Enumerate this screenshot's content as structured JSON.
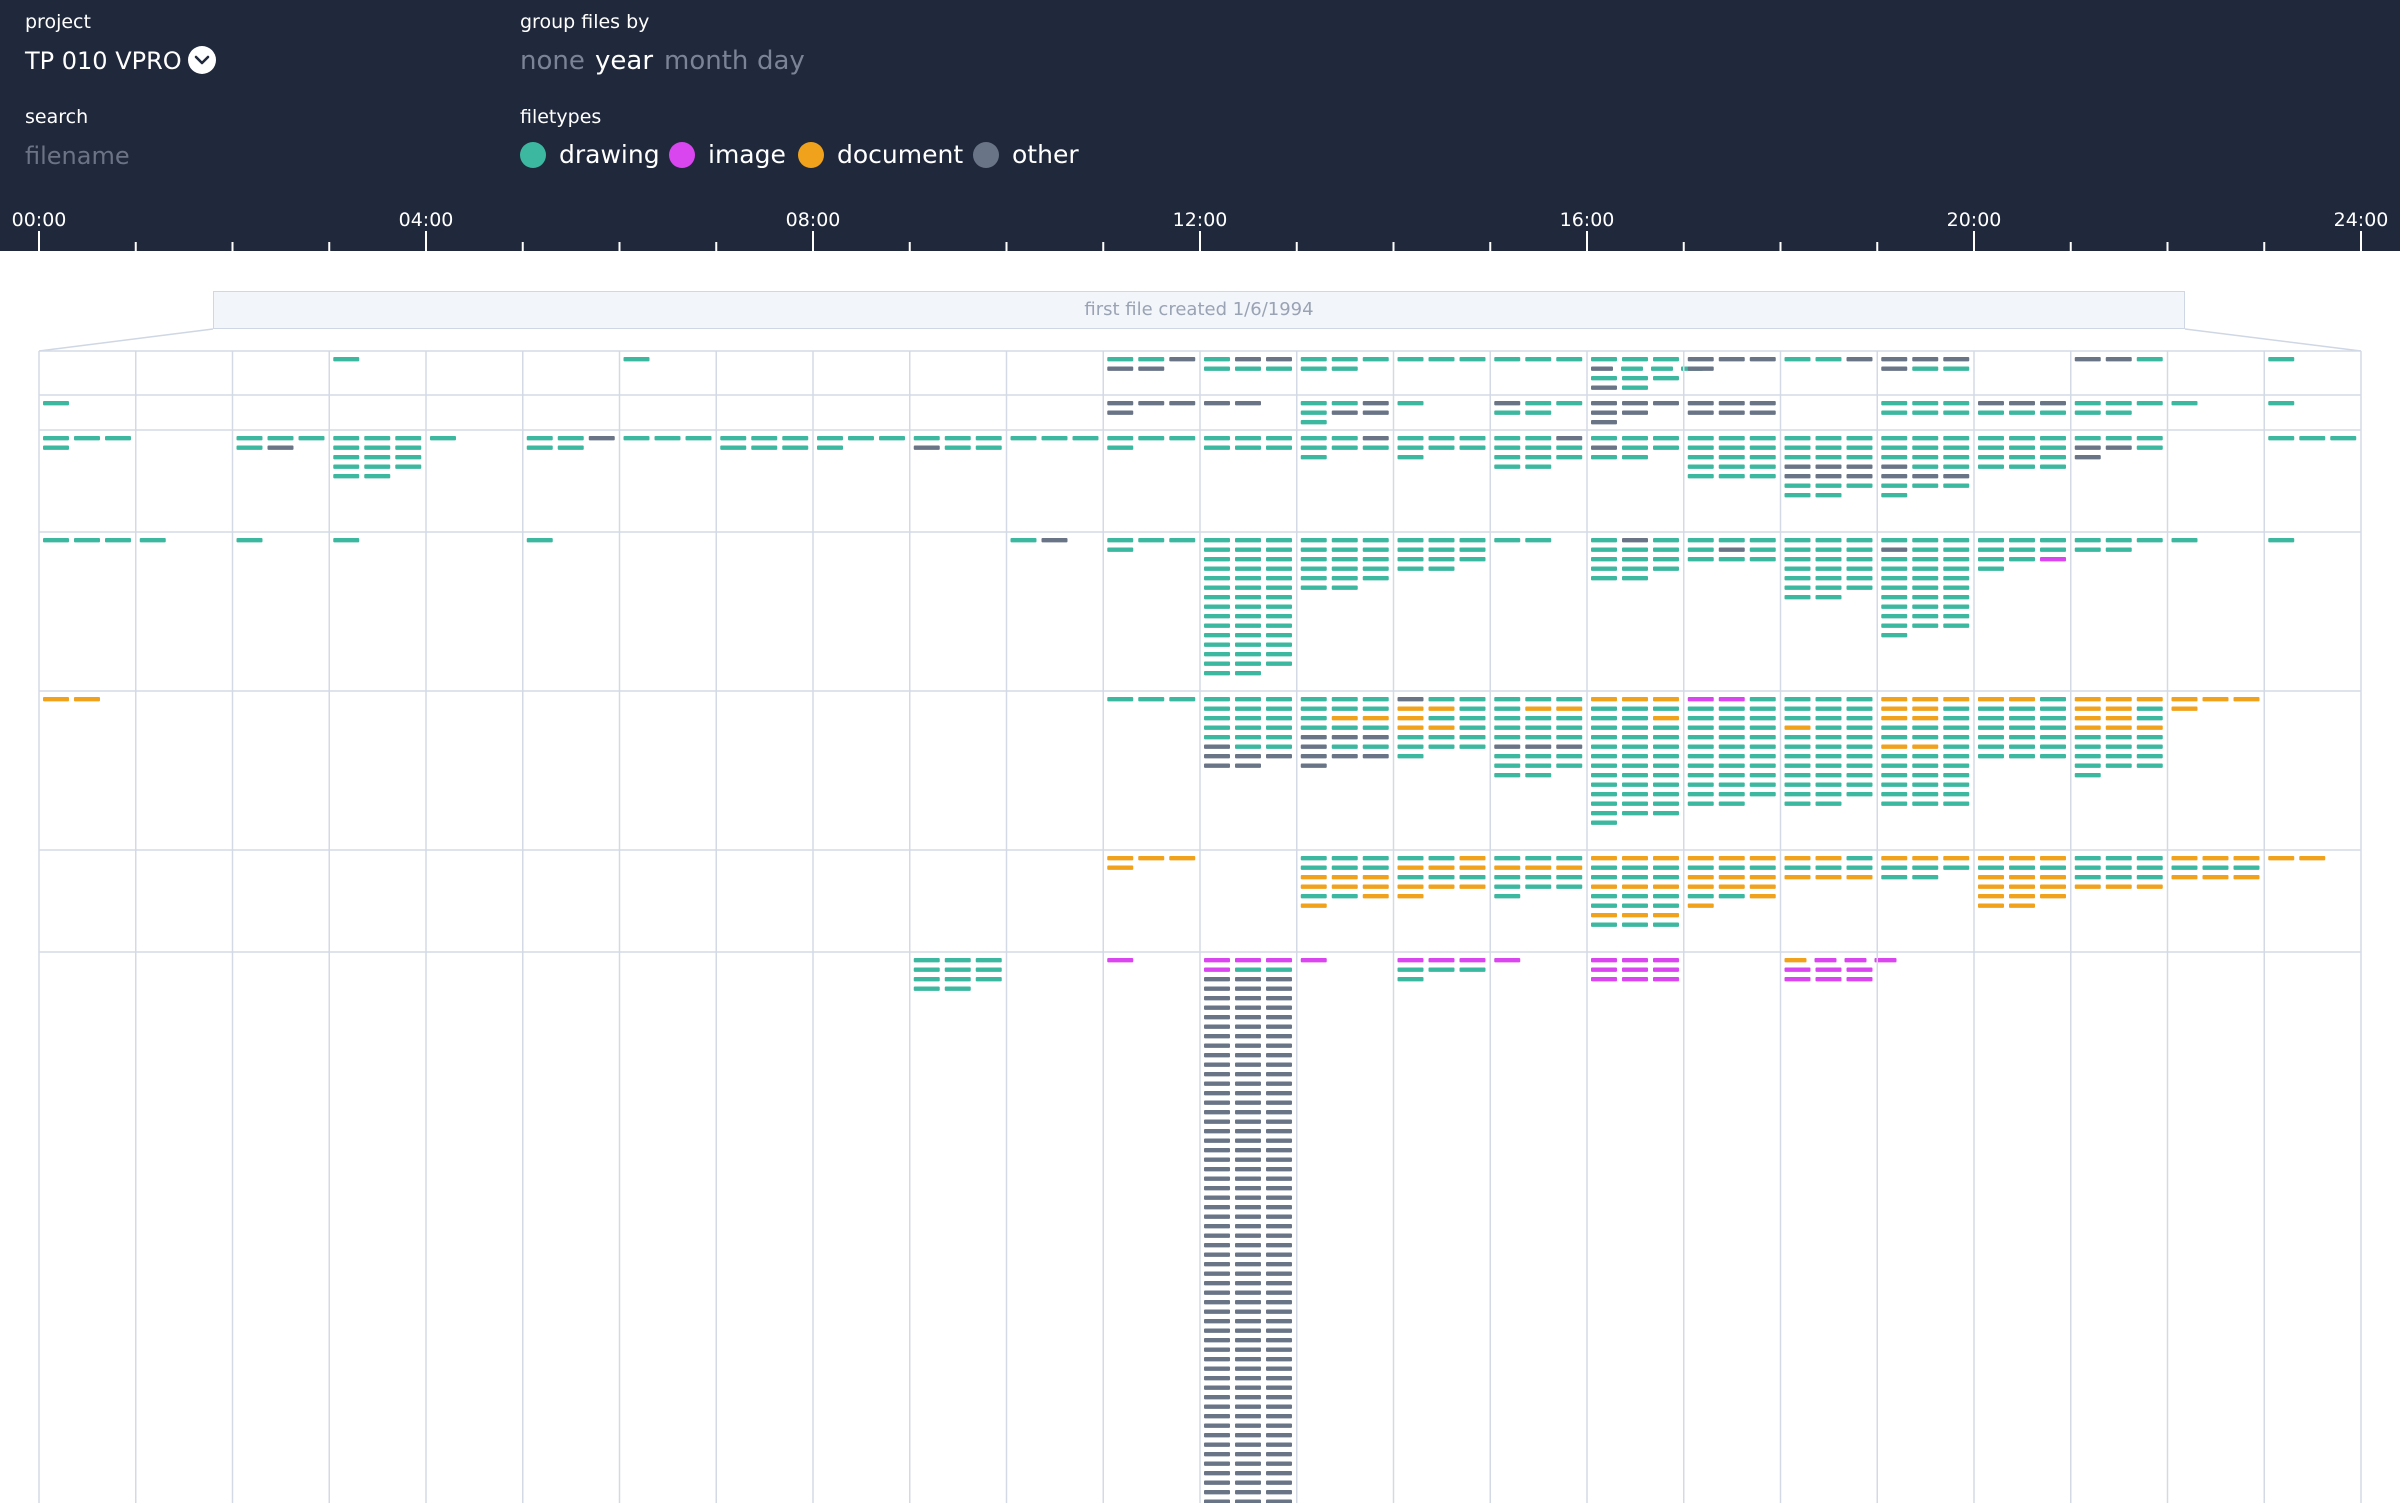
{
  "header": {
    "project_label": "project",
    "project_value": "TP 010 VPRO",
    "group_label": "group files by",
    "group_options": [
      "none",
      "year",
      "month",
      "day"
    ],
    "group_selected": "year",
    "search_label": "search",
    "search_placeholder": "filename",
    "filetypes_label": "filetypes",
    "filetypes": [
      {
        "name": "drawing",
        "color": "#3db8a0"
      },
      {
        "name": "image",
        "color": "#d946ef"
      },
      {
        "name": "document",
        "color": "#f0a21c"
      },
      {
        "name": "other",
        "color": "#6a7487"
      }
    ]
  },
  "timeline": {
    "tick_labels": [
      "00:00",
      "04:00",
      "08:00",
      "12:00",
      "16:00",
      "20:00",
      "24:00"
    ],
    "hours": 24,
    "banner": "first file created 1/6/1994"
  },
  "rows": [
    {
      "cells": [
        [],
        [],
        [],
        [
          "d"
        ],
        [],
        [],
        [
          "d"
        ],
        [],
        [],
        [],
        [],
        [
          "ddo",
          "oo"
        ],
        [
          "doo",
          "ddd"
        ],
        [
          "ddd",
          "dd"
        ],
        [
          "ddd"
        ],
        [
          "ddd"
        ],
        [
          "ddd",
          "oddd",
          "ddd",
          "od"
        ],
        [
          "ooo",
          "o"
        ],
        [
          "ddo"
        ],
        [
          "ooo",
          "odd"
        ],
        [],
        [
          "ood"
        ],
        [],
        [
          "d"
        ],
        []
      ]
    },
    {
      "cells": [
        [
          "d"
        ],
        [],
        [],
        [],
        [],
        [],
        [],
        [],
        [],
        [],
        [],
        [
          "ooo",
          "o"
        ],
        [
          "oo"
        ],
        [
          "ddo",
          "doo",
          "d"
        ],
        [
          "d"
        ],
        [
          "odd",
          "dd"
        ],
        [
          "ooo",
          "oo",
          "o"
        ],
        [
          "ooo",
          "ooo"
        ],
        [],
        [
          "ddd",
          "ddd"
        ],
        [
          "ooo",
          "ddd"
        ],
        [
          "ddd",
          "dd"
        ],
        [
          "d"
        ],
        [
          "d"
        ],
        []
      ]
    },
    {
      "cells": [
        [
          "ddd",
          "d"
        ],
        [],
        [
          "ddd",
          "do"
        ],
        [
          "ddd",
          "ddd",
          "ddd",
          "ddd",
          "dd"
        ],
        [
          "d"
        ],
        [
          "ddo",
          "dd"
        ],
        [
          "ddd"
        ],
        [
          "ddd",
          "ddd"
        ],
        [
          "ddd",
          "d"
        ],
        [
          "ddd",
          "odd"
        ],
        [
          "ddd"
        ],
        [
          "ddd",
          "d"
        ],
        [
          "ddd",
          "ddd"
        ],
        [
          "ddo",
          "ddd",
          "d"
        ],
        [
          "ddd",
          "ddd",
          "d"
        ],
        [
          "ddo",
          "ddd",
          "ddd",
          "dd"
        ],
        [
          "ddd",
          "odd",
          "dd"
        ],
        [
          "ddd",
          "ddd",
          "ddd",
          "ddd",
          "ddd"
        ],
        [
          "ddd",
          "ddd",
          "ddd",
          "ooo",
          "ooo",
          "ddd",
          "dd"
        ],
        [
          "ddd",
          "ddd",
          "ddd",
          "odd",
          "ooo",
          "ddd",
          "d"
        ],
        [
          "ddd",
          "ddd",
          "ddd",
          "ddd"
        ],
        [
          "ddd",
          "ood",
          "o"
        ],
        [],
        [
          "ddd"
        ],
        []
      ]
    },
    {
      "cells": [
        [
          "ddd"
        ],
        [
          "d"
        ],
        [
          "d"
        ],
        [
          "d"
        ],
        [],
        [
          "d"
        ],
        [],
        [],
        [],
        [],
        [
          "do"
        ],
        [
          "ddd",
          "d"
        ],
        [
          "ddd",
          "ddd",
          "ddd",
          "ddd",
          "ddd",
          "ddd",
          "ddd",
          "ddd",
          "ddd",
          "ddd",
          "ddd",
          "ddd",
          "ddd",
          "ddd",
          "dd"
        ],
        [
          "ddd",
          "ddd",
          "ddd",
          "ddd",
          "ddd",
          "dd"
        ],
        [
          "ddd",
          "ddd",
          "ddd",
          "dd"
        ],
        [
          "dd"
        ],
        [
          "dod",
          "ddd",
          "ddd",
          "ddd",
          "dd"
        ],
        [
          "ddd",
          "dod",
          "ddd"
        ],
        [
          "ddd",
          "ddd",
          "ddd",
          "ddd",
          "ddd",
          "ddd",
          "dd"
        ],
        [
          "ddd",
          "odd",
          "ddd",
          "ddd",
          "ddd",
          "ddd",
          "ddd",
          "ddd",
          "ddd",
          "ddd",
          "d"
        ],
        [
          "ddd",
          "ddd",
          "ddi",
          "d"
        ],
        [
          "ddd",
          "dd"
        ],
        [
          "d"
        ],
        [
          "d"
        ],
        []
      ]
    },
    {
      "cells": [
        [
          "cc"
        ],
        [],
        [],
        [],
        [],
        [],
        [],
        [],
        [],
        [],
        [],
        [
          "ddd"
        ],
        [
          "ddd",
          "ddd",
          "ddd",
          "ddd",
          "ddd",
          "odd",
          "ooo",
          "oo"
        ],
        [
          "ddd",
          "ddd",
          "dcc",
          "ddd",
          "ooo",
          "odd",
          "ooo",
          "o"
        ],
        [
          "odd",
          "ccd",
          "cdd",
          "ccd",
          "ddd",
          "ddd",
          "d"
        ],
        [
          "ddd",
          "dcc",
          "ddd",
          "ddd",
          "ddd",
          "ooo",
          "ddd",
          "ddd",
          "dd"
        ],
        [
          "ccc",
          "ddd",
          "ddc",
          "ddd",
          "ddd",
          "ddd",
          "ddd",
          "ddd",
          "ddd",
          "ddd",
          "ddd",
          "ddd",
          "ddd",
          "d"
        ],
        [
          "iid",
          "ddd",
          "ddd",
          "ddd",
          "ddd",
          "ddd",
          "ddd",
          "ddd",
          "ddd",
          "ddd",
          "ddd",
          "dd"
        ],
        [
          "ddd",
          "ddd",
          "ddd",
          "cdd",
          "ddd",
          "ddd",
          "ddd",
          "ddd",
          "ddd",
          "ddd",
          "ddd",
          "dd"
        ],
        [
          "ccc",
          "ccd",
          "ccd",
          "ddd",
          "ddd",
          "ccd",
          "ddd",
          "ddd",
          "ddd",
          "ddd",
          "ddd",
          "ddd"
        ],
        [
          "ccd",
          "ddd",
          "ddd",
          "ddd",
          "ddd",
          "ddd",
          "ddd"
        ],
        [
          "ccc",
          "ccd",
          "ccd",
          "ccc",
          "ddd",
          "ddd",
          "ddd",
          "ddd",
          "d"
        ],
        [
          "ccc",
          "c"
        ],
        [],
        []
      ]
    },
    {
      "cells": [
        [],
        [],
        [],
        [],
        [],
        [],
        [],
        [],
        [],
        [],
        [],
        [
          "ccc",
          "c"
        ],
        [],
        [
          "ddd",
          "ddd",
          "ccc",
          "ccc",
          "ddc",
          "c"
        ],
        [
          "ddc",
          "ccc",
          "ddd",
          "ccc",
          "c"
        ],
        [
          "ddd",
          "ccc",
          "ddd",
          "ddd",
          "d"
        ],
        [
          "ccc",
          "ddd",
          "ddd",
          "ccc",
          "ddd",
          "ddd",
          "ccc",
          "ddd"
        ],
        [
          "ccc",
          "ddd",
          "ccc",
          "ccc",
          "ddc",
          "c"
        ],
        [
          "ccd",
          "ddd",
          "ccc"
        ],
        [
          "ccc",
          "ddd",
          "dd"
        ],
        [
          "ccc",
          "ddd",
          "ccc",
          "ccc",
          "ccc",
          "cc"
        ],
        [
          "ddd",
          "ddd",
          "ddd",
          "ccc"
        ],
        [
          "ccc",
          "ddd",
          "ccc"
        ],
        [
          "cc"
        ],
        []
      ]
    },
    {
      "cells": [
        [],
        [],
        [],
        [],
        [],
        [],
        [],
        [],
        [],
        [
          "ddd",
          "ddd",
          "ddd",
          "dd"
        ],
        [],
        [
          "i"
        ],
        [
          "iii",
          "idd",
          "ooo",
          "ooo",
          "ooo",
          "ooo",
          "ooo",
          "ooo",
          "ooo",
          "ooo",
          "ooo",
          "ooo",
          "ooo",
          "ooo",
          "ooo",
          "ooo",
          "ooo",
          "ooo",
          "ooo",
          "ooo",
          "ooo",
          "ooo",
          "ooo",
          "ooo",
          "ooo",
          "ooo",
          "ooo",
          "ooo",
          "ooo",
          "ooo",
          "ooo",
          "ooo",
          "ooo",
          "ooo",
          "ooo",
          "ooo",
          "ooo",
          "ooo",
          "ooo",
          "ooo",
          "ooo",
          "ooo",
          "ooo",
          "ooo",
          "ooo",
          "ooo",
          "ooo",
          "ooo",
          "ooo",
          "ooo",
          "ooo",
          "ooo",
          "ooo",
          "ooo",
          "ooo",
          "ooo",
          "ooo",
          "ooo",
          "ooo"
        ],
        [
          "i"
        ],
        [
          "iii",
          "ddd",
          "d"
        ],
        [
          "i"
        ],
        [
          "iii",
          "iii",
          "iii"
        ],
        [],
        [
          "ciii",
          "iii",
          "iii"
        ],
        [],
        [],
        [],
        [],
        [],
        []
      ]
    }
  ]
}
